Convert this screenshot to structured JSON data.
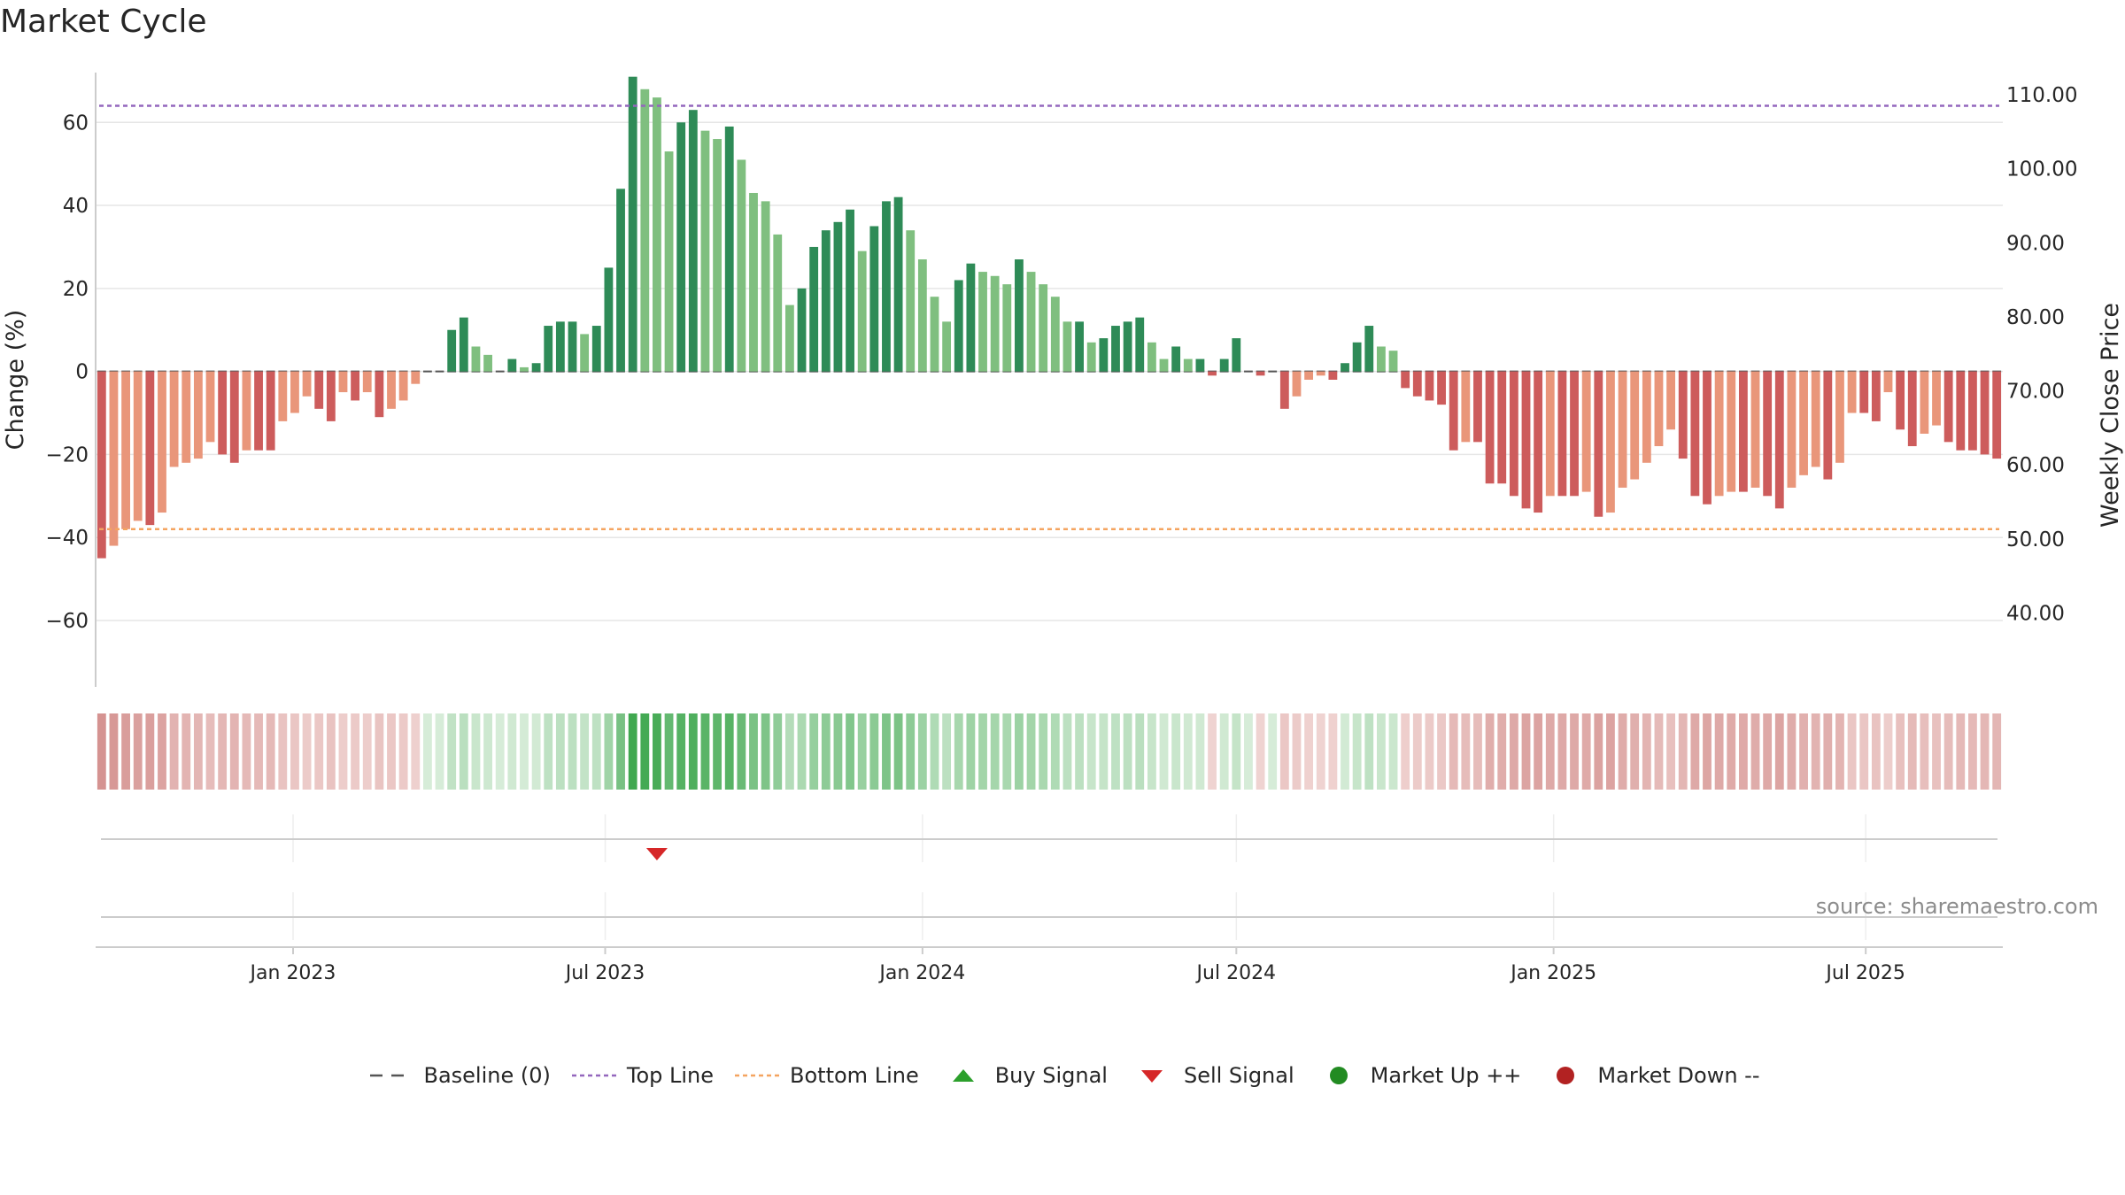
{
  "title": "Market Cycle",
  "source_text": "source: sharemaestro.com",
  "chart_data": {
    "type": "bar",
    "title": "Market Cycle",
    "ylabel": "Change (%)",
    "ylabel_right": "Weekly Close Price",
    "ylim": [
      -76,
      72
    ],
    "ylim_right": [
      30,
      113
    ],
    "yticks": [
      -60,
      -40,
      -20,
      0,
      20,
      40,
      60
    ],
    "yticks_right": [
      "40.00",
      "50.00",
      "60.00",
      "70.00",
      "80.00",
      "90.00",
      "100.00",
      "110.00"
    ],
    "x_start": "2022-09-12",
    "week_step_days": 7,
    "xticks": [
      {
        "label": "Jan 2023",
        "date": "2023-01-01"
      },
      {
        "label": "Jul 2023",
        "date": "2023-07-01"
      },
      {
        "label": "Jan 2024",
        "date": "2024-01-01"
      },
      {
        "label": "Jul 2024",
        "date": "2024-07-01"
      },
      {
        "label": "Jan 2025",
        "date": "2025-01-01"
      },
      {
        "label": "Jul 2025",
        "date": "2025-07-01"
      }
    ],
    "top_line": 64,
    "bottom_line": -38,
    "baseline": 0,
    "values": [
      -45,
      -42,
      -38,
      -36,
      -37,
      -34,
      -23,
      -22,
      -21,
      -17,
      -20,
      -22,
      -19,
      -19,
      -19,
      -12,
      -10,
      -6,
      -9,
      -12,
      -5,
      -7,
      -5,
      -11,
      -9,
      -7,
      -3,
      0,
      0,
      10,
      13,
      6,
      4,
      0,
      3,
      1,
      2,
      11,
      12,
      12,
      9,
      11,
      25,
      44,
      71,
      68,
      66,
      53,
      60,
      63,
      58,
      56,
      59,
      51,
      43,
      41,
      33,
      16,
      20,
      30,
      34,
      36,
      39,
      29,
      35,
      41,
      42,
      34,
      27,
      18,
      12,
      22,
      26,
      24,
      23,
      21,
      27,
      24,
      21,
      18,
      12,
      12,
      7,
      8,
      11,
      12,
      13,
      7,
      3,
      6,
      3,
      3,
      -1,
      3,
      8,
      0,
      -1,
      0,
      -9,
      -6,
      -2,
      -1,
      -2,
      2,
      7,
      11,
      6,
      5,
      -4,
      -6,
      -7,
      -8,
      -19,
      -17,
      -17,
      -27,
      -27,
      -30,
      -33,
      -34,
      -30,
      -30,
      -30,
      -29,
      -35,
      -34,
      -28,
      -26,
      -22,
      -18,
      -14,
      -21,
      -30,
      -32,
      -30,
      -29,
      -29,
      -28,
      -30,
      -33,
      -28,
      -25,
      -23,
      -26,
      -22,
      -10,
      -10,
      -12,
      -5,
      -14,
      -18,
      -15,
      -13,
      -17,
      -19,
      -19,
      -20,
      -21
    ],
    "sell_signals": [
      "2023-07-31"
    ],
    "buy_signals": [],
    "legend": [
      {
        "key": "baseline",
        "label": "Baseline (0)",
        "color": "#555555"
      },
      {
        "key": "top",
        "label": "Top Line",
        "color": "#9467bd"
      },
      {
        "key": "bottom",
        "label": "Bottom Line",
        "color": "#f4a460"
      },
      {
        "key": "buy",
        "label": "Buy Signal",
        "color": "#2ca02c"
      },
      {
        "key": "sell",
        "label": "Sell Signal",
        "color": "#d62728"
      },
      {
        "key": "up",
        "label": "Market Up ++",
        "color": "#228b22"
      },
      {
        "key": "down",
        "label": "Market Down --",
        "color": "#b22222"
      }
    ],
    "colors": {
      "pos_strong": "#2e8b57",
      "pos_light": "#7fbf7f",
      "neg_strong": "#cd5c5c",
      "neg_light": "#e9967a"
    }
  }
}
